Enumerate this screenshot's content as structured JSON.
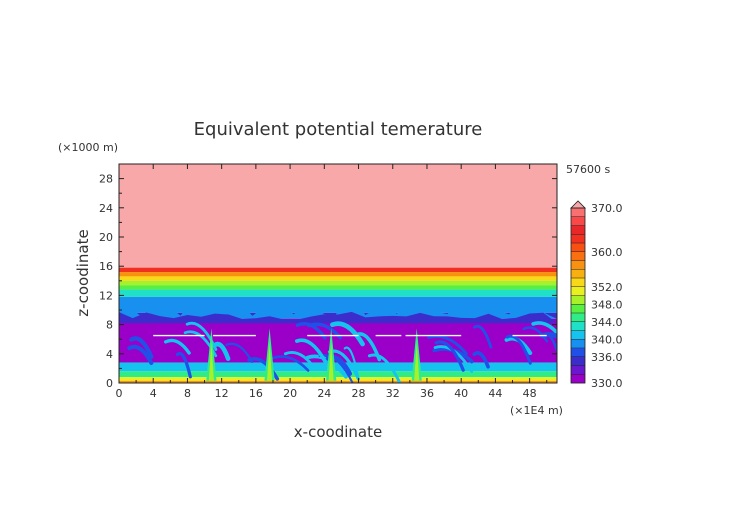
{
  "chart_data": {
    "type": "heatmap",
    "title": "Equivalent potential temerature",
    "xlabel": "x-coodinate",
    "ylabel": "z-coodinate",
    "x_unit": "(×1E4 m)",
    "y_unit": "(×1000 m)",
    "time_label": "57600 s",
    "xlim": [
      0,
      51.2
    ],
    "ylim": [
      0,
      30
    ],
    "x_ticks": [
      0,
      4,
      8,
      12,
      16,
      20,
      24,
      28,
      32,
      36,
      40,
      44,
      48
    ],
    "y_ticks": [
      0,
      4,
      8,
      12,
      16,
      20,
      24,
      28
    ],
    "colorbar": {
      "levels": [
        330,
        332,
        334,
        336,
        338,
        340,
        342,
        344,
        346,
        348,
        350,
        352,
        354,
        356,
        358,
        360,
        362,
        364,
        366,
        368,
        370
      ],
      "tick_labels": [
        "330.0",
        "336.0",
        "340.0",
        "344.0",
        "348.0",
        "352.0",
        "360.0",
        "370.0"
      ],
      "colors": [
        "#9a00c8",
        "#6a18d0",
        "#3c2ccc",
        "#2050e8",
        "#1890f0",
        "#14c4ee",
        "#20e0c8",
        "#30ec88",
        "#58f040",
        "#a8f028",
        "#e8f020",
        "#f8d818",
        "#f8b010",
        "#f89010",
        "#f87010",
        "#f85010",
        "#f03020",
        "#e82828",
        "#f84848",
        "#f87070"
      ],
      "extend": "max",
      "over_color": "#f8a8a8"
    },
    "field_description_layers": [
      {
        "from_z": 15.8,
        "to_z": 30,
        "value": 371
      },
      {
        "from_z": 15.2,
        "to_z": 15.8,
        "value": 363
      },
      {
        "from_z": 14.6,
        "to_z": 15.2,
        "value": 357
      },
      {
        "from_z": 14.0,
        "to_z": 14.6,
        "value": 352
      },
      {
        "from_z": 13.4,
        "to_z": 14.0,
        "value": 349
      },
      {
        "from_z": 12.8,
        "to_z": 13.4,
        "value": 346
      },
      {
        "from_z": 11.8,
        "to_z": 12.8,
        "value": 342
      },
      {
        "from_z": 9.6,
        "to_z": 11.8,
        "value": 339
      },
      {
        "from_z": 8.8,
        "to_z": 9.6,
        "value": 335
      },
      {
        "from_z": 2.8,
        "to_z": 8.8,
        "value": 331
      },
      {
        "from_z": 1.6,
        "to_z": 2.8,
        "value": 340
      },
      {
        "from_z": 0.8,
        "to_z": 1.6,
        "value": 345
      },
      {
        "from_z": 0.3,
        "to_z": 0.8,
        "value": 350
      },
      {
        "from_z": 0,
        "to_z": 0.3,
        "value": 356
      }
    ]
  }
}
